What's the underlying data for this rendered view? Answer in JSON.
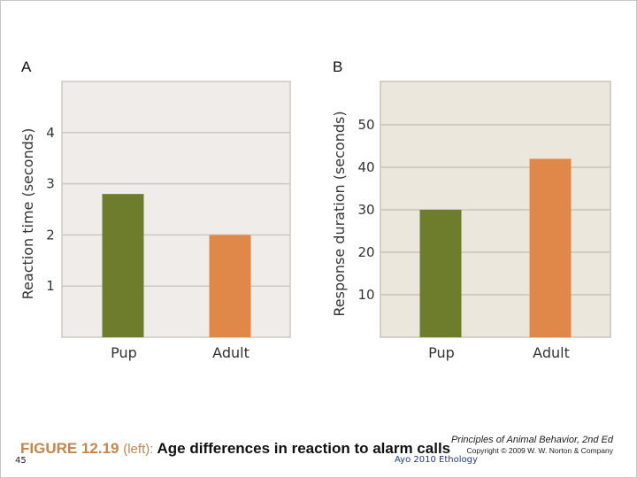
{
  "chart_data": [
    {
      "panel": "A",
      "type": "bar",
      "title": "",
      "categories": [
        "Pup",
        "Adult"
      ],
      "values": [
        2.8,
        2.0
      ],
      "ylabel": "Reaction time (seconds)",
      "xlabel": "",
      "ylim": [
        0,
        5
      ],
      "yticks": [
        1,
        2,
        3,
        4
      ],
      "grid": true,
      "bar_colors": [
        "#6e7d2b",
        "#e0884a"
      ],
      "plot_bg": "#f0ecea",
      "grid_color": "#cdc8c4"
    },
    {
      "panel": "B",
      "type": "bar",
      "title": "",
      "categories": [
        "Pup",
        "Adult"
      ],
      "values": [
        30,
        42
      ],
      "ylabel": "Response duration (seconds)",
      "xlabel": "",
      "ylim": [
        0,
        60
      ],
      "yticks": [
        10,
        20,
        30,
        40,
        50
      ],
      "grid": true,
      "bar_colors": [
        "#6e7d2b",
        "#e0884a"
      ],
      "plot_bg": "#ebe7dd",
      "grid_color": "#c9c4b8"
    }
  ],
  "caption": {
    "figure": "FIGURE 12.19",
    "qualifier": "(left):",
    "text": "Age differences in reaction to alarm calls"
  },
  "publisher": {
    "line1": "Principles of Animal Behavior, 2nd Ed",
    "line2": "Copyright © 2009 W. W. Norton & Company"
  },
  "slide_number": "45",
  "footer": "Ayo 2010 Ethology"
}
